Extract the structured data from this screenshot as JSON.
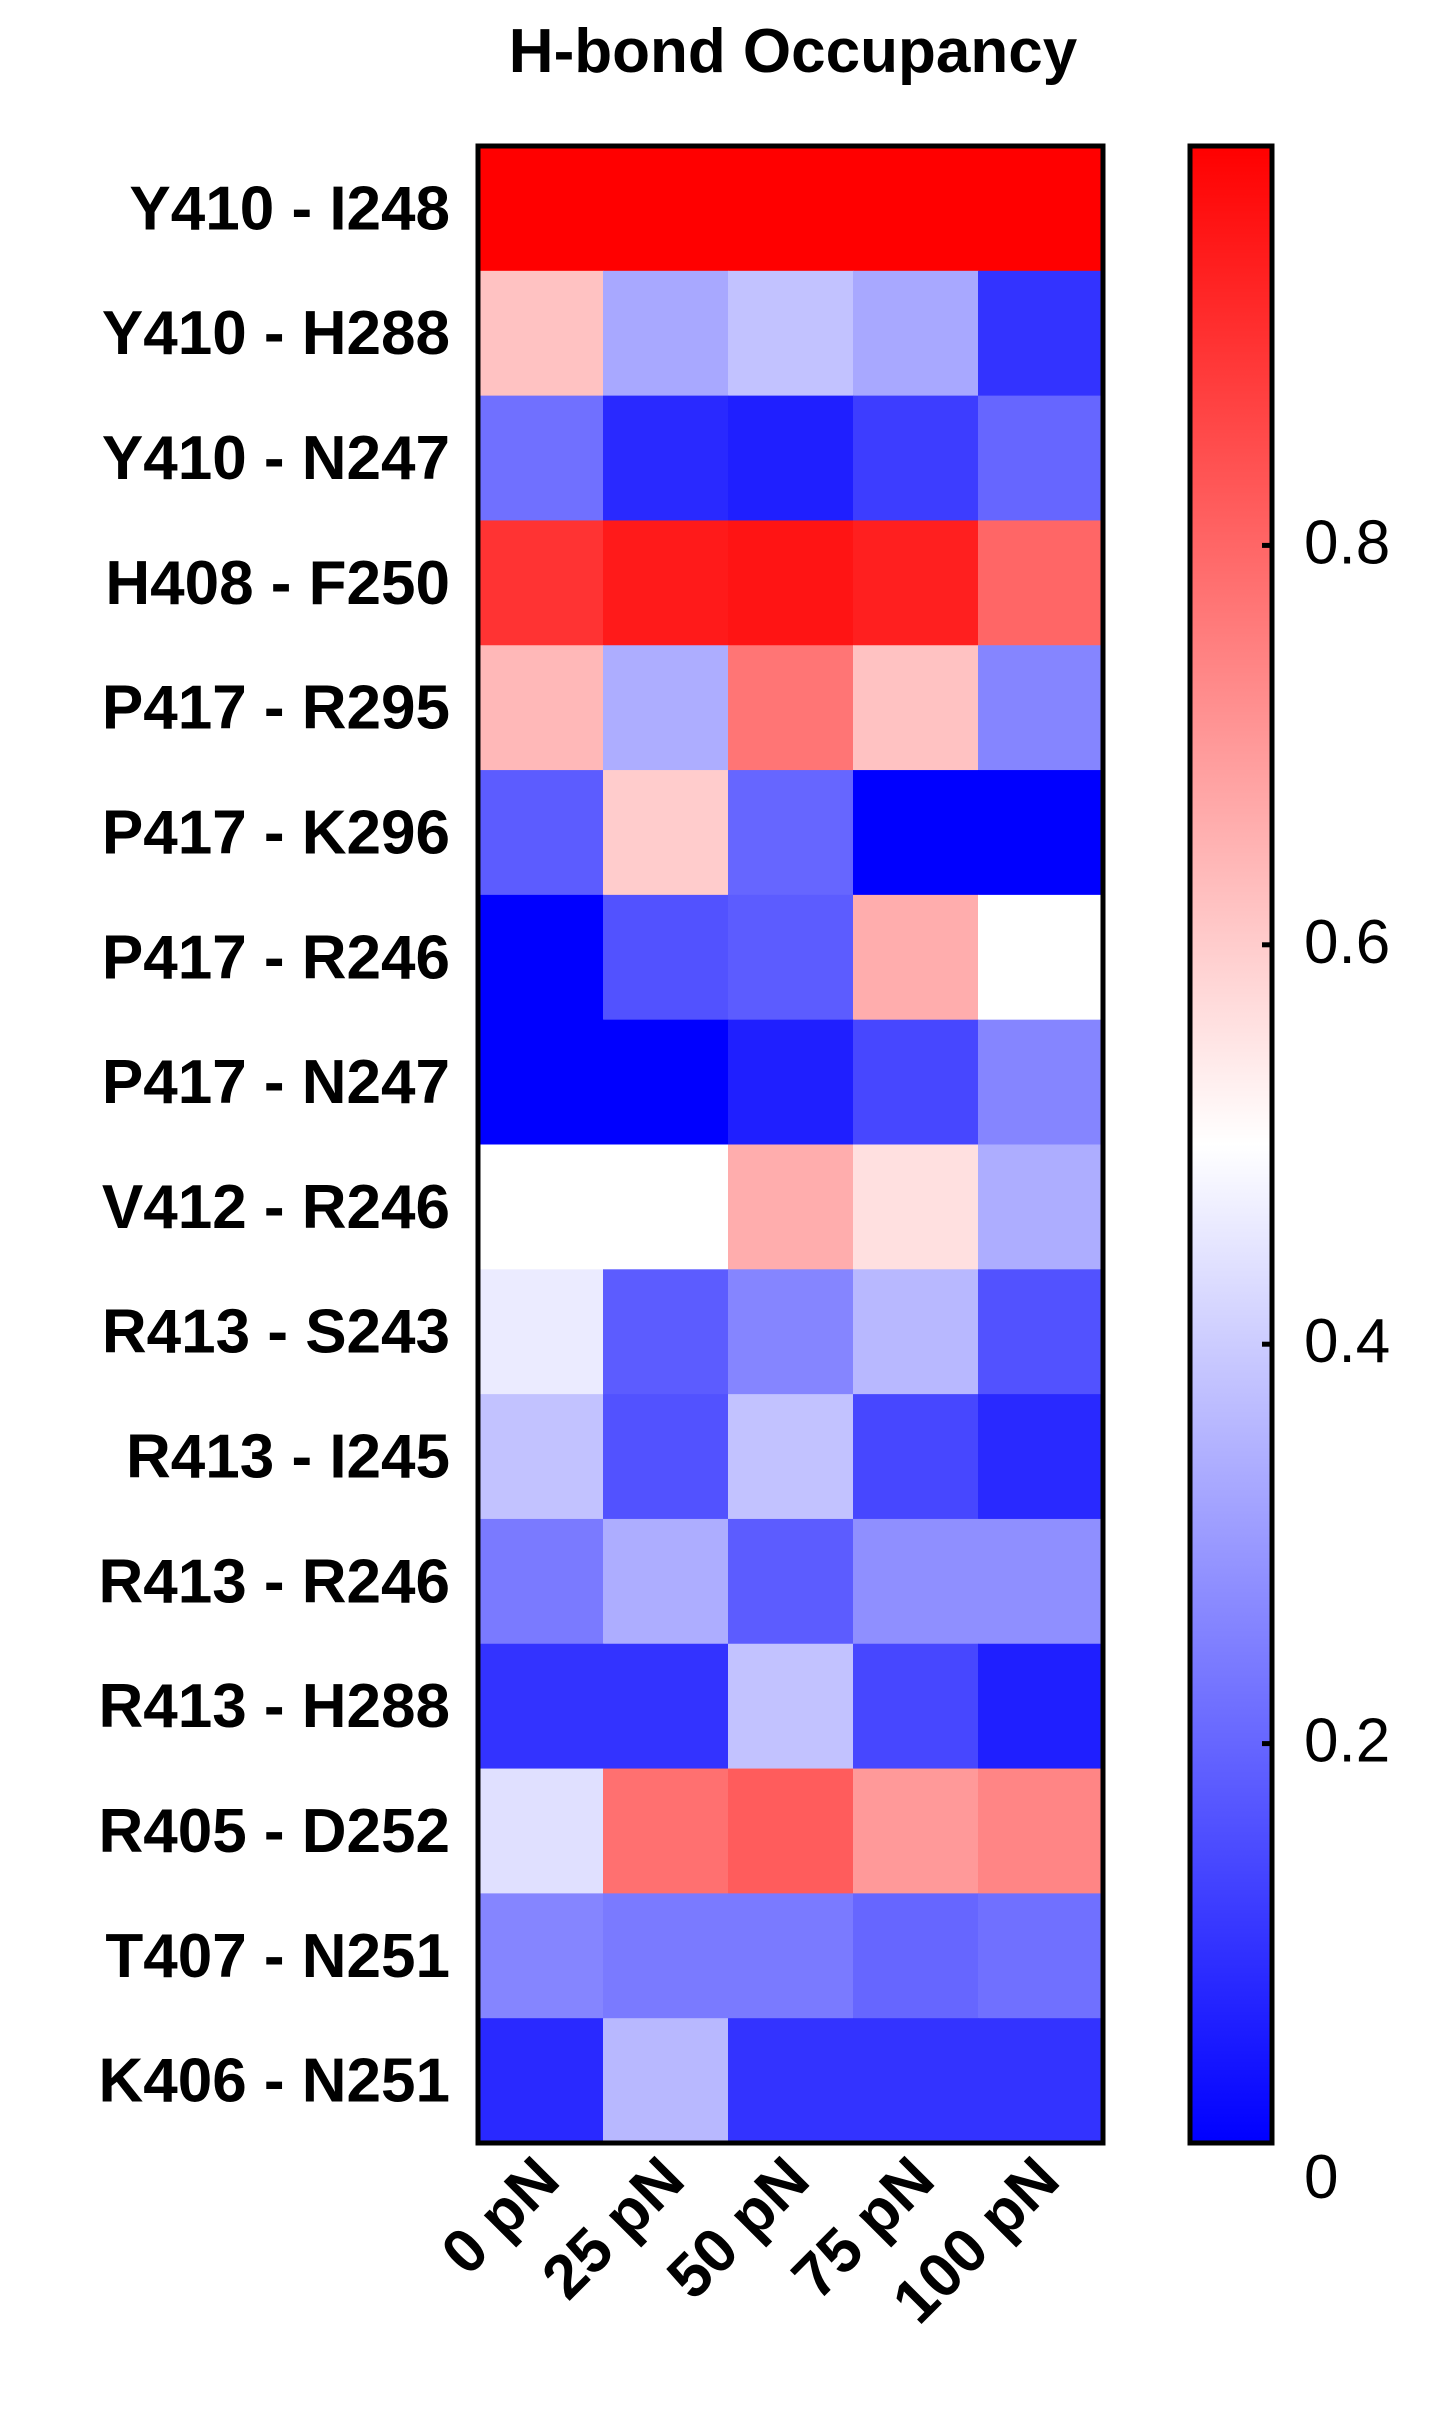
{
  "chart_data": {
    "type": "heatmap",
    "title": "H-bond Occupancy",
    "xlabel": "",
    "ylabel": "",
    "columns": [
      "0 pN",
      "25 pN",
      "50 pN",
      "75 pN",
      "100 pN"
    ],
    "rows": [
      "Y410 - I248",
      "Y410 - H288",
      "Y410 - N247",
      "H408 - F250",
      "P417 - R295",
      "P417 - K296",
      "P417 - R246",
      "P417 - N247",
      "V412 - R246",
      "R413 - S243",
      "R413 - I245",
      "R413 - R246",
      "R413 - H288",
      "R405 - D252",
      "T407 - N251",
      "K406 - N251"
    ],
    "values": [
      [
        1.0,
        1.0,
        1.0,
        1.0,
        1.0
      ],
      [
        0.62,
        0.33,
        0.38,
        0.33,
        0.1
      ],
      [
        0.22,
        0.08,
        0.06,
        0.12,
        0.2
      ],
      [
        0.9,
        0.95,
        0.96,
        0.94,
        0.8
      ],
      [
        0.64,
        0.34,
        0.77,
        0.62,
        0.26
      ],
      [
        0.18,
        0.6,
        0.2,
        0.0,
        0.0
      ],
      [
        0.0,
        0.16,
        0.18,
        0.66,
        0.5
      ],
      [
        0.0,
        0.0,
        0.06,
        0.14,
        0.26
      ],
      [
        0.5,
        0.5,
        0.66,
        0.56,
        0.34
      ],
      [
        0.46,
        0.18,
        0.26,
        0.36,
        0.16
      ],
      [
        0.38,
        0.16,
        0.38,
        0.14,
        0.08
      ],
      [
        0.24,
        0.34,
        0.18,
        0.28,
        0.28
      ],
      [
        0.1,
        0.1,
        0.38,
        0.14,
        0.06
      ],
      [
        0.44,
        0.78,
        0.82,
        0.7,
        0.74
      ],
      [
        0.26,
        0.24,
        0.24,
        0.2,
        0.22
      ],
      [
        0.08,
        0.36,
        0.1,
        0.1,
        0.1
      ]
    ],
    "colorbar": {
      "range": [
        0,
        1.0
      ],
      "tick_values": [
        0,
        0.2,
        0.4,
        0.6,
        0.8
      ],
      "tick_labels": [
        "0",
        "0.2",
        "0.4",
        "0.6",
        "0.8"
      ],
      "colors": {
        "low": "#0000ff",
        "mid": "#ffffff",
        "high": "#ff0000"
      }
    }
  }
}
